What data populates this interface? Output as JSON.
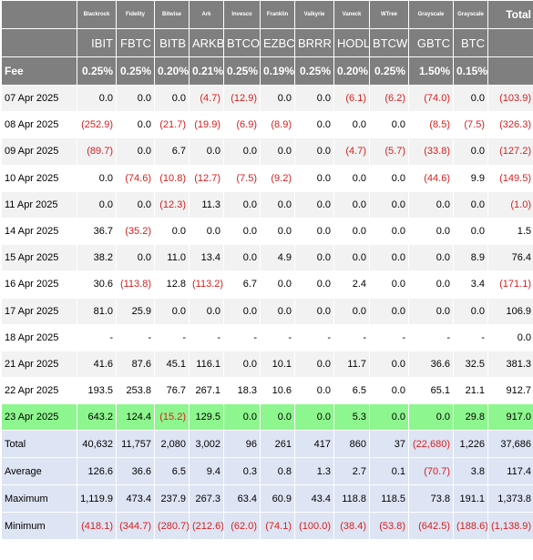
{
  "header": {
    "total_label": "Total",
    "fee_label": "Fee",
    "funds": [
      {
        "issuer": "Blackrock",
        "ticker": "IBIT",
        "fee": "0.25%"
      },
      {
        "issuer": "Fidelity",
        "ticker": "FBTC",
        "fee": "0.25%"
      },
      {
        "issuer": "Bitwise",
        "ticker": "BITB",
        "fee": "0.20%"
      },
      {
        "issuer": "Ark",
        "ticker": "ARKB",
        "fee": "0.21%"
      },
      {
        "issuer": "Invesco",
        "ticker": "BTCO",
        "fee": "0.25%"
      },
      {
        "issuer": "Franklin",
        "ticker": "EZBC",
        "fee": "0.19%"
      },
      {
        "issuer": "Valkyrie",
        "ticker": "BRRR",
        "fee": "0.25%"
      },
      {
        "issuer": "Vaneck",
        "ticker": "HODL",
        "fee": "0.20%"
      },
      {
        "issuer": "WTree",
        "ticker": "BTCW",
        "fee": "0.25%"
      },
      {
        "issuer": "Grayscale",
        "ticker": "GBTC",
        "fee": "1.50%"
      },
      {
        "issuer": "Grayscale",
        "ticker": "BTC",
        "fee": "0.15%"
      }
    ]
  },
  "rows": [
    {
      "date": "07 Apr 2025",
      "values": [
        "0.0",
        "0.0",
        "0.0",
        "(4.7)",
        "(12.9)",
        "0.0",
        "0.0",
        "(6.1)",
        "(6.2)",
        "(74.0)",
        "0.0"
      ],
      "total": "(103.9)"
    },
    {
      "date": "08 Apr 2025",
      "values": [
        "(252.9)",
        "0.0",
        "(21.7)",
        "(19.9)",
        "(6.9)",
        "(8.9)",
        "0.0",
        "0.0",
        "0.0",
        "(8.5)",
        "(7.5)"
      ],
      "total": "(326.3)"
    },
    {
      "date": "09 Apr 2025",
      "values": [
        "(89.7)",
        "0.0",
        "6.7",
        "0.0",
        "0.0",
        "0.0",
        "0.0",
        "(4.7)",
        "(5.7)",
        "(33.8)",
        "0.0"
      ],
      "total": "(127.2)"
    },
    {
      "date": "10 Apr 2025",
      "values": [
        "0.0",
        "(74.6)",
        "(10.8)",
        "(12.7)",
        "(7.5)",
        "(9.2)",
        "0.0",
        "0.0",
        "0.0",
        "(44.6)",
        "9.9"
      ],
      "total": "(149.5)"
    },
    {
      "date": "11 Apr 2025",
      "values": [
        "0.0",
        "0.0",
        "(12.3)",
        "11.3",
        "0.0",
        "0.0",
        "0.0",
        "0.0",
        "0.0",
        "0.0",
        "0.0"
      ],
      "total": "(1.0)"
    },
    {
      "date": "14 Apr 2025",
      "values": [
        "36.7",
        "(35.2)",
        "0.0",
        "0.0",
        "0.0",
        "0.0",
        "0.0",
        "0.0",
        "0.0",
        "0.0",
        "0.0"
      ],
      "total": "1.5"
    },
    {
      "date": "15 Apr 2025",
      "values": [
        "38.2",
        "0.0",
        "11.0",
        "13.4",
        "0.0",
        "4.9",
        "0.0",
        "0.0",
        "0.0",
        "0.0",
        "8.9"
      ],
      "total": "76.4"
    },
    {
      "date": "16 Apr 2025",
      "values": [
        "30.6",
        "(113.8)",
        "12.8",
        "(113.2)",
        "6.7",
        "0.0",
        "0.0",
        "2.4",
        "0.0",
        "0.0",
        "3.4"
      ],
      "total": "(171.1)"
    },
    {
      "date": "17 Apr 2025",
      "values": [
        "81.0",
        "25.9",
        "0.0",
        "0.0",
        "0.0",
        "0.0",
        "0.0",
        "0.0",
        "0.0",
        "0.0",
        "0.0"
      ],
      "total": "106.9"
    },
    {
      "date": "18 Apr 2025",
      "values": [
        "-",
        "-",
        "-",
        "-",
        "-",
        "-",
        "-",
        "-",
        "-",
        "-",
        "-"
      ],
      "total": "0.0"
    },
    {
      "date": "21 Apr 2025",
      "values": [
        "41.6",
        "87.6",
        "45.1",
        "116.1",
        "0.0",
        "10.1",
        "0.0",
        "11.7",
        "0.0",
        "36.6",
        "32.5"
      ],
      "total": "381.3"
    },
    {
      "date": "22 Apr 2025",
      "values": [
        "193.5",
        "253.8",
        "76.7",
        "267.1",
        "18.3",
        "10.6",
        "0.0",
        "6.5",
        "0.0",
        "65.1",
        "21.1"
      ],
      "total": "912.7"
    },
    {
      "date": "23 Apr 2025",
      "values": [
        "643.2",
        "124.4",
        "(15.2)",
        "129.5",
        "0.0",
        "0.0",
        "0.0",
        "5.3",
        "0.0",
        "0.0",
        "29.8"
      ],
      "total": "917.0",
      "highlight": true
    }
  ],
  "stats": [
    {
      "label": "Total",
      "values": [
        "40,632",
        "11,757",
        "2,080",
        "3,002",
        "96",
        "261",
        "417",
        "860",
        "37",
        "(22,680)",
        "1,226"
      ],
      "total": "37,686"
    },
    {
      "label": "Average",
      "values": [
        "126.6",
        "36.6",
        "6.5",
        "9.4",
        "0.3",
        "0.8",
        "1.3",
        "2.7",
        "0.1",
        "(70.7)",
        "3.8"
      ],
      "total": "117.4"
    },
    {
      "label": "Maximum",
      "values": [
        "1,119.9",
        "473.4",
        "237.9",
        "267.3",
        "63.4",
        "60.9",
        "43.4",
        "118.8",
        "118.5",
        "73.8",
        "191.1"
      ],
      "total": "1,373.8"
    },
    {
      "label": "Minimum",
      "values": [
        "(418.1)",
        "(344.7)",
        "(280.7)",
        "(212.6)",
        "(62.0)",
        "(74.1)",
        "(100.0)",
        "(38.4)",
        "(53.8)",
        "(642.5)",
        "(188.6)"
      ],
      "total": "(1,138.9)"
    }
  ],
  "colors": {
    "header_bg": "#7f7f7f",
    "negative": "#d62020",
    "highlight_row": "#8ef68e",
    "stats_bg": "#dde4f3",
    "alt_row": "#f2f2f2"
  }
}
